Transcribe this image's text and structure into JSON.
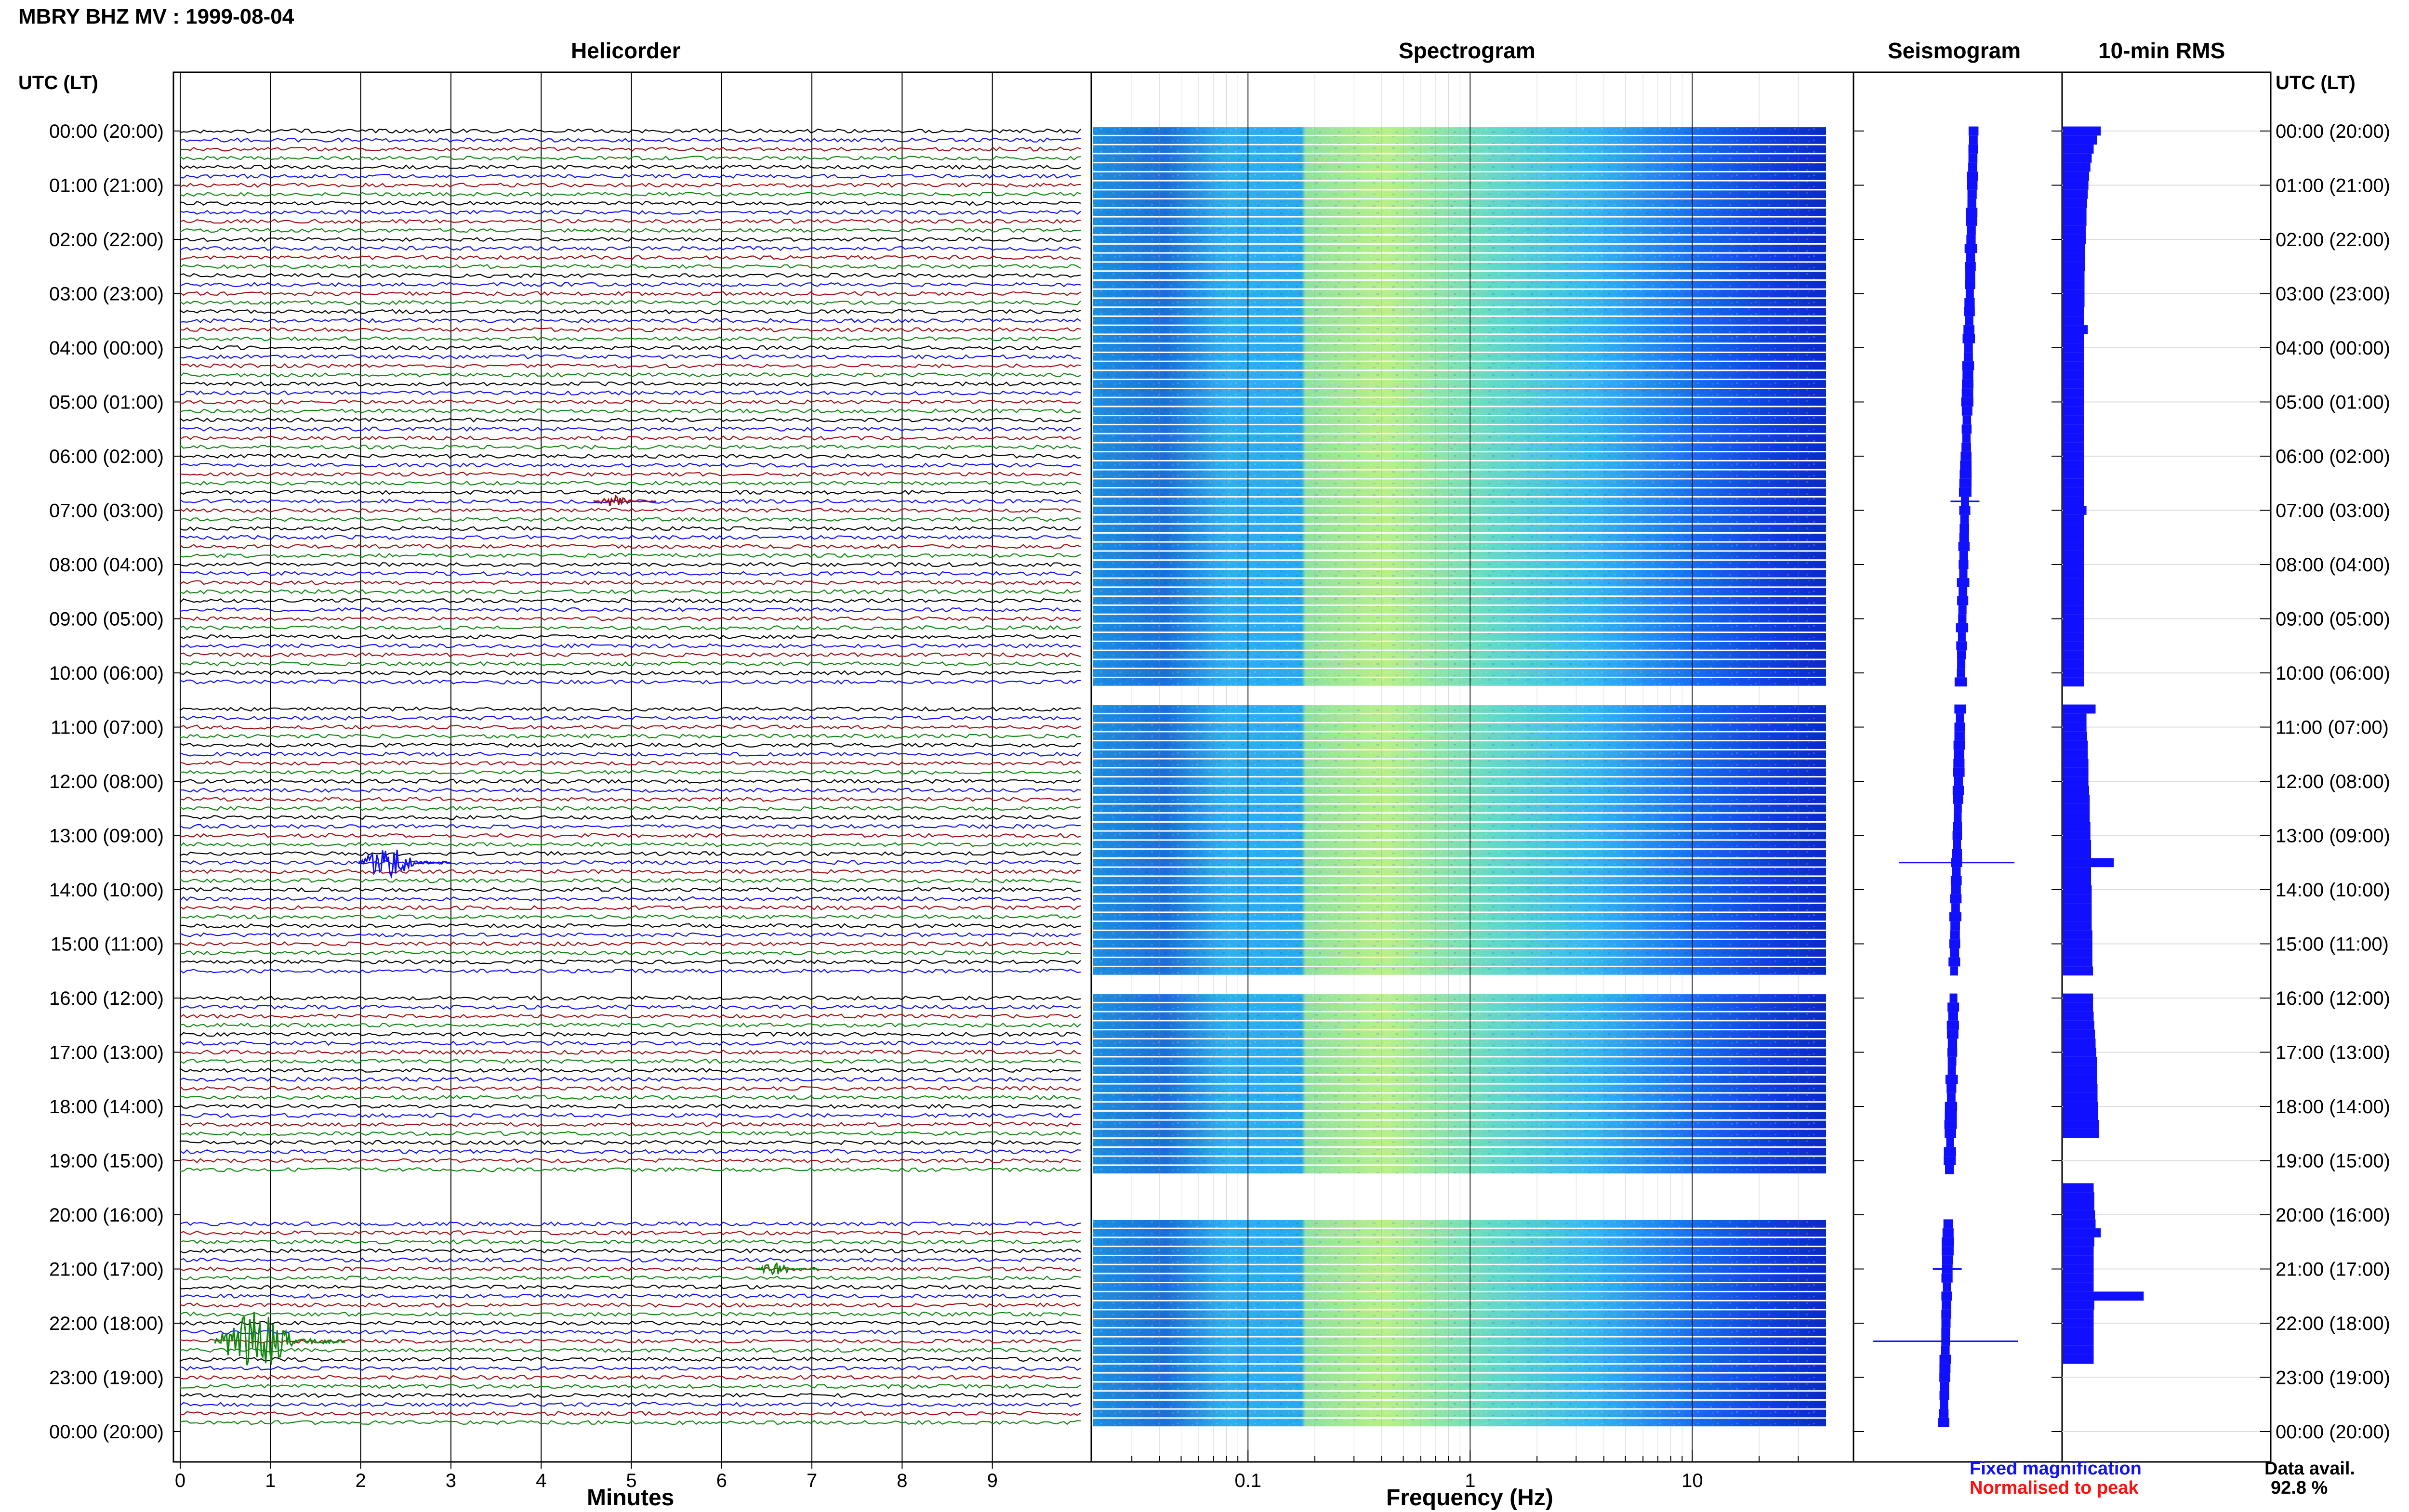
{
  "header": {
    "title": "MBRY BHZ MV : 1999-08-04"
  },
  "panels": {
    "helicorder": "Helicorder",
    "spectrogram": "Spectrogram",
    "seismogram": "Seismogram",
    "rms": "10-min RMS"
  },
  "axes": {
    "left_label": "UTC (LT)",
    "right_label": "UTC (LT)",
    "minutes_label": "Minutes",
    "frequency_label": "Frequency (Hz)"
  },
  "legend": {
    "fixed": "Fixed magnification",
    "normalised": "Normalised to peak",
    "fixed_color": "#1010ff",
    "normalised_color": "#ff1010"
  },
  "availability": {
    "label": "Data avail.",
    "value": "92.8 %"
  },
  "chart_data": {
    "type": "heatmap",
    "station": "MBRY BHZ MV",
    "date": "1999-08-04",
    "hour_ticks": [
      "00:00 (20:00)",
      "01:00 (21:00)",
      "02:00 (22:00)",
      "03:00 (23:00)",
      "04:00 (00:00)",
      "05:00 (01:00)",
      "06:00 (02:00)",
      "07:00 (03:00)",
      "08:00 (04:00)",
      "09:00 (05:00)",
      "10:00 (06:00)",
      "11:00 (07:00)",
      "12:00 (08:00)",
      "13:00 (09:00)",
      "14:00 (10:00)",
      "15:00 (11:00)",
      "16:00 (12:00)",
      "17:00 (13:00)",
      "18:00 (14:00)",
      "19:00 (15:00)",
      "20:00 (16:00)",
      "21:00 (17:00)",
      "22:00 (18:00)",
      "23:00 (19:00)",
      "00:00 (20:00)"
    ],
    "minute_ticks": [
      "0",
      "1",
      "2",
      "3",
      "4",
      "5",
      "6",
      "7",
      "8",
      "9"
    ],
    "frequency_ticks": [
      "0.1",
      "1",
      "10"
    ],
    "frequency_range_hz": [
      0.02,
      40
    ],
    "trace_colors": [
      "#000000",
      "#1010ff",
      "#a01010",
      "#108810"
    ],
    "data_gaps_utc": [
      [
        "10:20",
        "10:40"
      ],
      [
        "15:40",
        "16:00"
      ],
      [
        "19:20",
        "20:10"
      ]
    ],
    "events": [
      {
        "time_utc": "06:50",
        "minute": 4.8,
        "color": "#a01010",
        "size": "small"
      },
      {
        "time_utc": "13:30",
        "minute": 2.2,
        "color": "#1010ff",
        "size": "medium"
      },
      {
        "time_utc": "21:00",
        "minute": 6.6,
        "color": "#108810",
        "size": "small"
      },
      {
        "time_utc": "22:20",
        "minute": 0.6,
        "color": "#108810",
        "size": "large"
      }
    ],
    "rms_10min": [
      5.8,
      5.2,
      4.7,
      4.4,
      4.2,
      4.0,
      3.9,
      3.8,
      3.7,
      3.6,
      3.6,
      3.5,
      3.5,
      3.4,
      3.4,
      3.4,
      3.3,
      3.3,
      3.3,
      3.3,
      3.2,
      3.2,
      3.8,
      3.2,
      3.2,
      3.2,
      3.2,
      3.2,
      3.2,
      3.2,
      3.2,
      3.2,
      3.2,
      3.2,
      3.2,
      3.2,
      3.2,
      3.2,
      3.2,
      3.2,
      3.2,
      3.2,
      3.6,
      3.2,
      3.2,
      3.2,
      3.2,
      3.2,
      3.2,
      3.2,
      3.2,
      3.2,
      3.2,
      3.2,
      3.2,
      3.2,
      3.2,
      3.2,
      3.2,
      3.2,
      3.2,
      3.2,
      null,
      null,
      5.0,
      3.6,
      3.6,
      3.7,
      3.8,
      3.8,
      3.9,
      3.9,
      3.9,
      4.0,
      4.1,
      4.1,
      4.1,
      4.2,
      4.2,
      4.3,
      4.3,
      7.8,
      4.3,
      4.3,
      4.4,
      4.4,
      4.4,
      4.4,
      4.4,
      4.5,
      4.5,
      4.5,
      4.5,
      4.6,
      null,
      null,
      4.6,
      4.6,
      4.7,
      4.8,
      4.9,
      5.0,
      5.1,
      5.2,
      5.2,
      5.2,
      5.3,
      5.3,
      5.4,
      5.4,
      5.5,
      5.5,
      null,
      null,
      null,
      null,
      null,
      4.7,
      4.8,
      4.8,
      4.9,
      5.0,
      5.8,
      4.8,
      4.7,
      4.7,
      4.7,
      4.7,
      4.7,
      12.4,
      4.8,
      4.7,
      4.7,
      4.7,
      4.7,
      4.7,
      4.7
    ]
  }
}
